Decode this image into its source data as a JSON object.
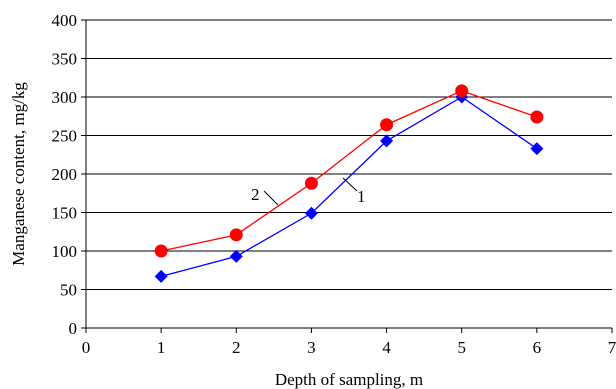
{
  "chart_data": {
    "type": "line",
    "title": "",
    "xlabel": "Depth of sampling, m",
    "ylabel": "Manganese content, mg/kg",
    "xlim": [
      0,
      7
    ],
    "ylim": [
      0,
      400
    ],
    "xticks": [
      "0",
      "1",
      "2",
      "3",
      "4",
      "5",
      "6",
      "7"
    ],
    "yticks": [
      "0",
      "50",
      "100",
      "150",
      "200",
      "250",
      "300",
      "350",
      "400"
    ],
    "grid": "horizontal",
    "legend": "none",
    "series": [
      {
        "label": "1",
        "color": "#0000ff",
        "marker": "diamond",
        "x": [
          1,
          2,
          3,
          4,
          5,
          6
        ],
        "y": [
          67,
          93,
          149,
          243,
          300,
          233
        ]
      },
      {
        "label": "2",
        "color": "#ff0000",
        "marker": "circle",
        "x": [
          1,
          2,
          3,
          4,
          5,
          6
        ],
        "y": [
          100,
          121,
          188,
          264,
          308,
          274
        ]
      }
    ]
  }
}
